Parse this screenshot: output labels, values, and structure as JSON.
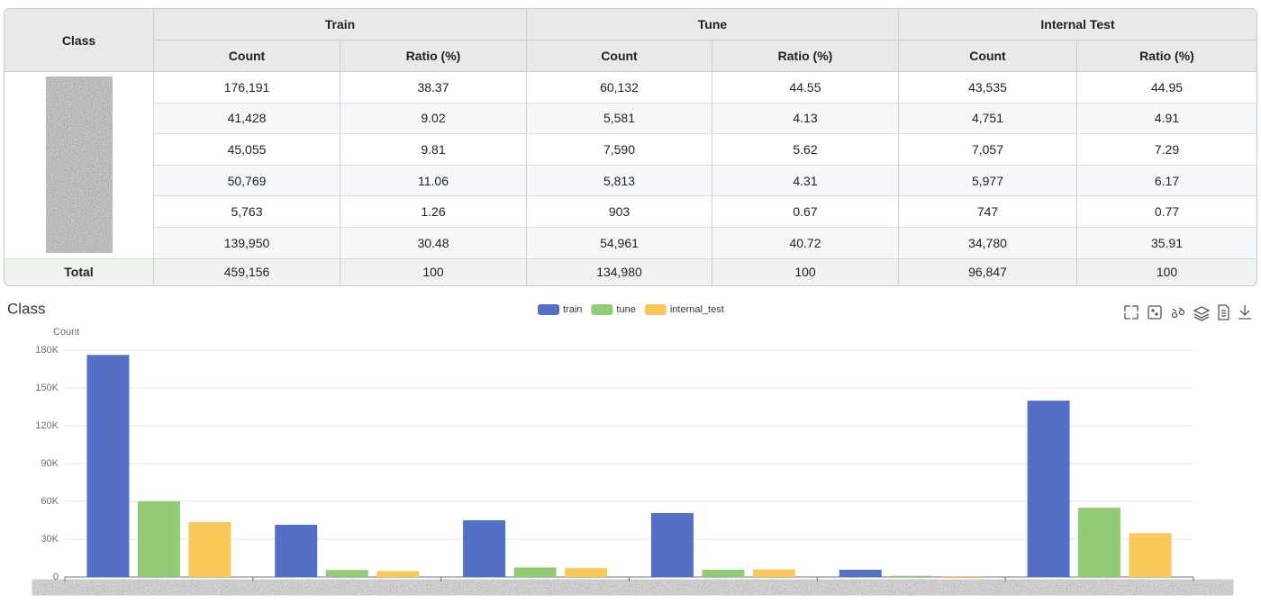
{
  "table": {
    "header": {
      "class": "Class",
      "groups": [
        "Train",
        "Tune",
        "Internal Test"
      ],
      "subheaders": [
        "Count",
        "Ratio (%)",
        "Count",
        "Ratio (%)",
        "Count",
        "Ratio (%)"
      ]
    },
    "rows": [
      [
        "176,191",
        "38.37",
        "60,132",
        "44.55",
        "43,535",
        "44.95"
      ],
      [
        "41,428",
        "9.02",
        "5,581",
        "4.13",
        "4,751",
        "4.91"
      ],
      [
        "45,055",
        "9.81",
        "7,590",
        "5.62",
        "7,057",
        "7.29"
      ],
      [
        "50,769",
        "11.06",
        "5,813",
        "4.31",
        "5,977",
        "6.17"
      ],
      [
        "5,763",
        "1.26",
        "903",
        "0.67",
        "747",
        "0.77"
      ],
      [
        "139,950",
        "30.48",
        "54,961",
        "40.72",
        "34,780",
        "35.91"
      ]
    ],
    "total": {
      "label": "Total",
      "values": [
        "459,156",
        "100",
        "134,980",
        "100",
        "96,847",
        "100"
      ]
    }
  },
  "chart_data": {
    "type": "bar",
    "title": "Class",
    "y_label": "Count",
    "categories": [
      null,
      null,
      null,
      null,
      null,
      null
    ],
    "series": [
      {
        "name": "train",
        "color": "#5470c6",
        "values": [
          176191,
          41428,
          45055,
          50769,
          5763,
          139950
        ]
      },
      {
        "name": "tune",
        "color": "#91cc75",
        "values": [
          60132,
          5581,
          7590,
          5813,
          903,
          54961
        ]
      },
      {
        "name": "internal_test",
        "color": "#fac858",
        "values": [
          43535,
          4751,
          7057,
          5977,
          747,
          34780
        ]
      }
    ],
    "ylim": [
      0,
      180000
    ],
    "yticks": [
      0,
      {
        "value": 30000,
        "label": "30K"
      },
      {
        "value": 60000,
        "label": "60K"
      },
      {
        "value": 90000,
        "label": "90K"
      },
      {
        "value": 120000,
        "label": "120K"
      },
      {
        "value": 150000,
        "label": "150K"
      },
      {
        "value": 180000,
        "label": "180K"
      }
    ],
    "grid": true,
    "legend": "top"
  }
}
